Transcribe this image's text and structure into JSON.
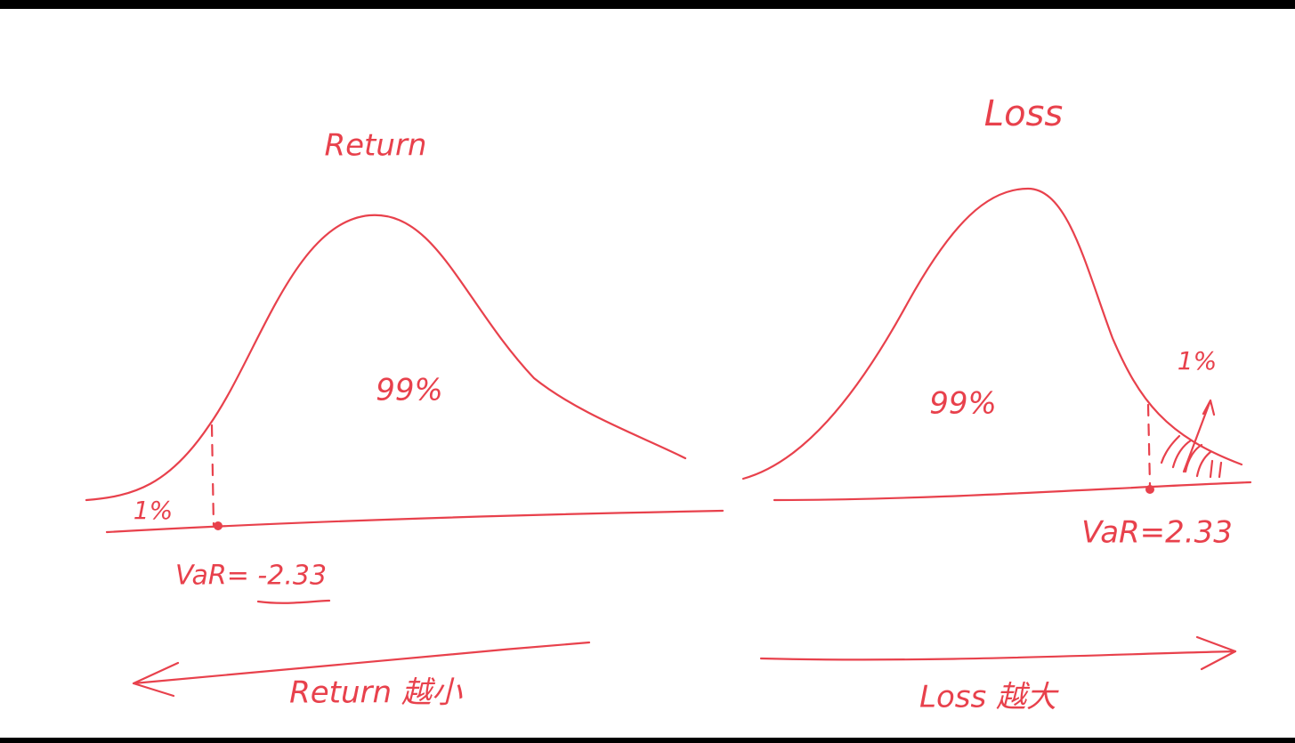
{
  "left": {
    "title": "Return",
    "body_label": "99%",
    "tail_label": "1%",
    "var_label": "VaR= -2.33",
    "direction_label": "Return 越小"
  },
  "right": {
    "title": "Loss",
    "body_label": "99%",
    "tail_label": "1%",
    "var_label": "VaR=2.33",
    "direction_label": "Loss 越大"
  }
}
